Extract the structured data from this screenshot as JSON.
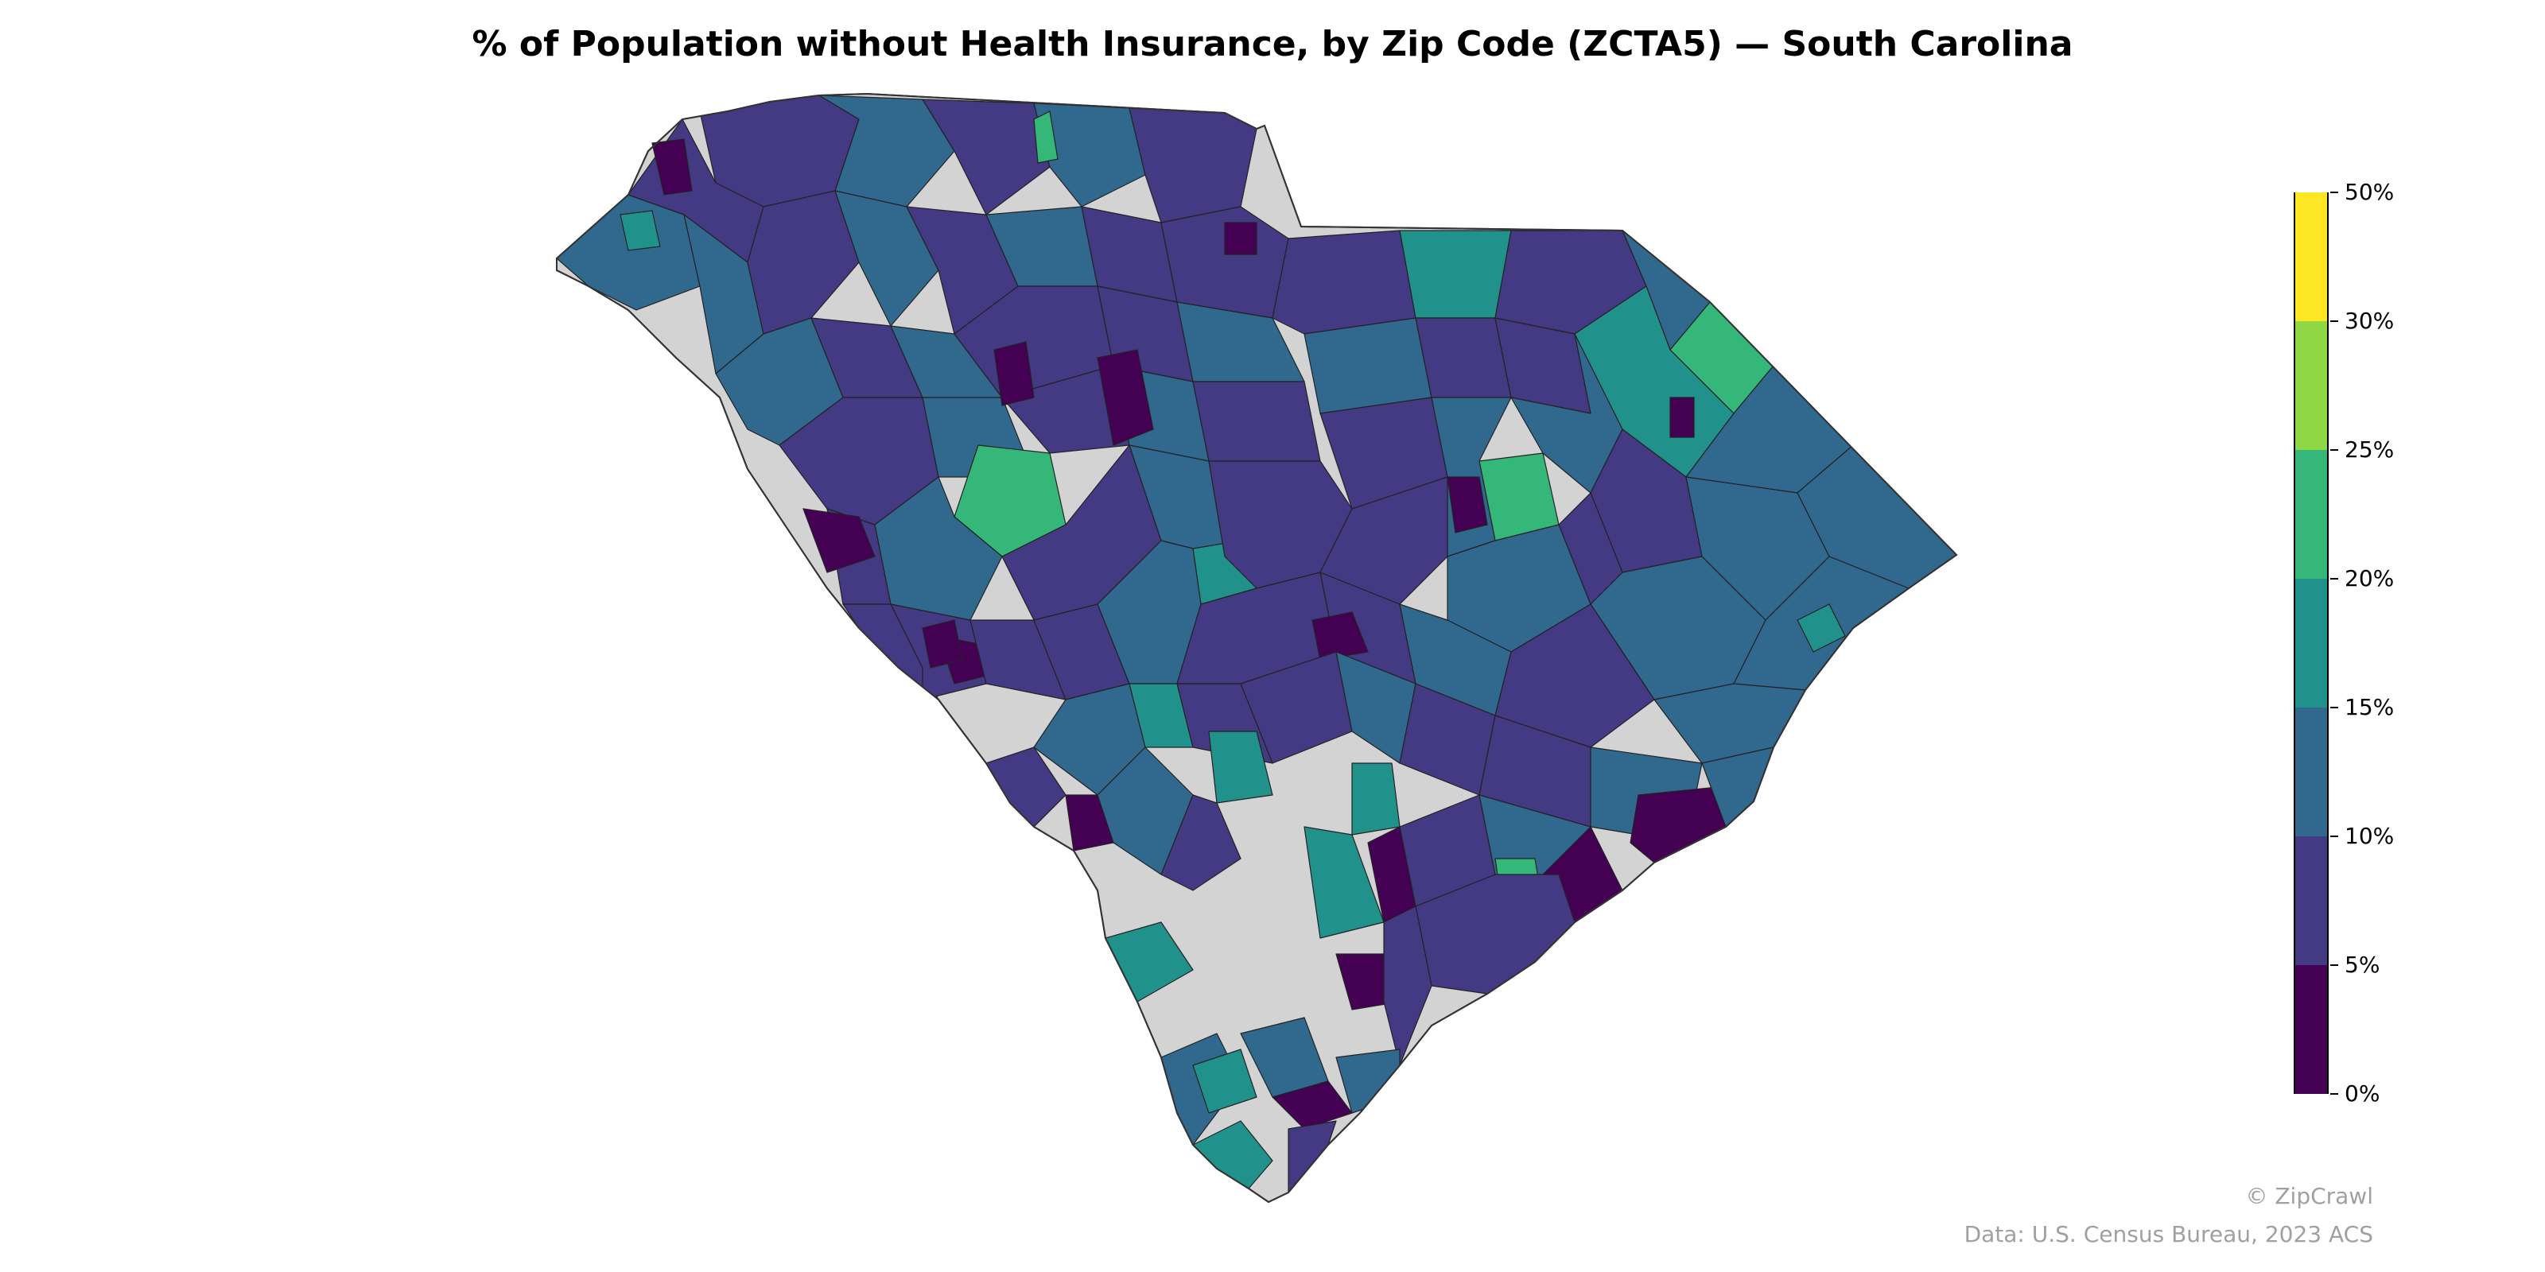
{
  "title": "% of Population without Health Insurance, by Zip Code (ZCTA5) — South Carolina",
  "colorbar": {
    "ticks": [
      "0%",
      "5%",
      "10%",
      "15%",
      "20%",
      "25%",
      "30%",
      "50%"
    ],
    "bins": [
      {
        "range": "0–5%",
        "color": "#440154"
      },
      {
        "range": "5–10%",
        "color": "#443983"
      },
      {
        "range": "10–15%",
        "color": "#31688e"
      },
      {
        "range": "15–20%",
        "color": "#21918c"
      },
      {
        "range": "20–25%",
        "color": "#35b779"
      },
      {
        "range": "25–30%",
        "color": "#8fd744"
      },
      {
        "range": "30–50%",
        "color": "#fde725"
      }
    ],
    "no_data_color": "#d3d3d3"
  },
  "credits": {
    "brand": "© ZipCrawl",
    "source": "Data: U.S. Census Bureau, 2023 ACS"
  }
}
